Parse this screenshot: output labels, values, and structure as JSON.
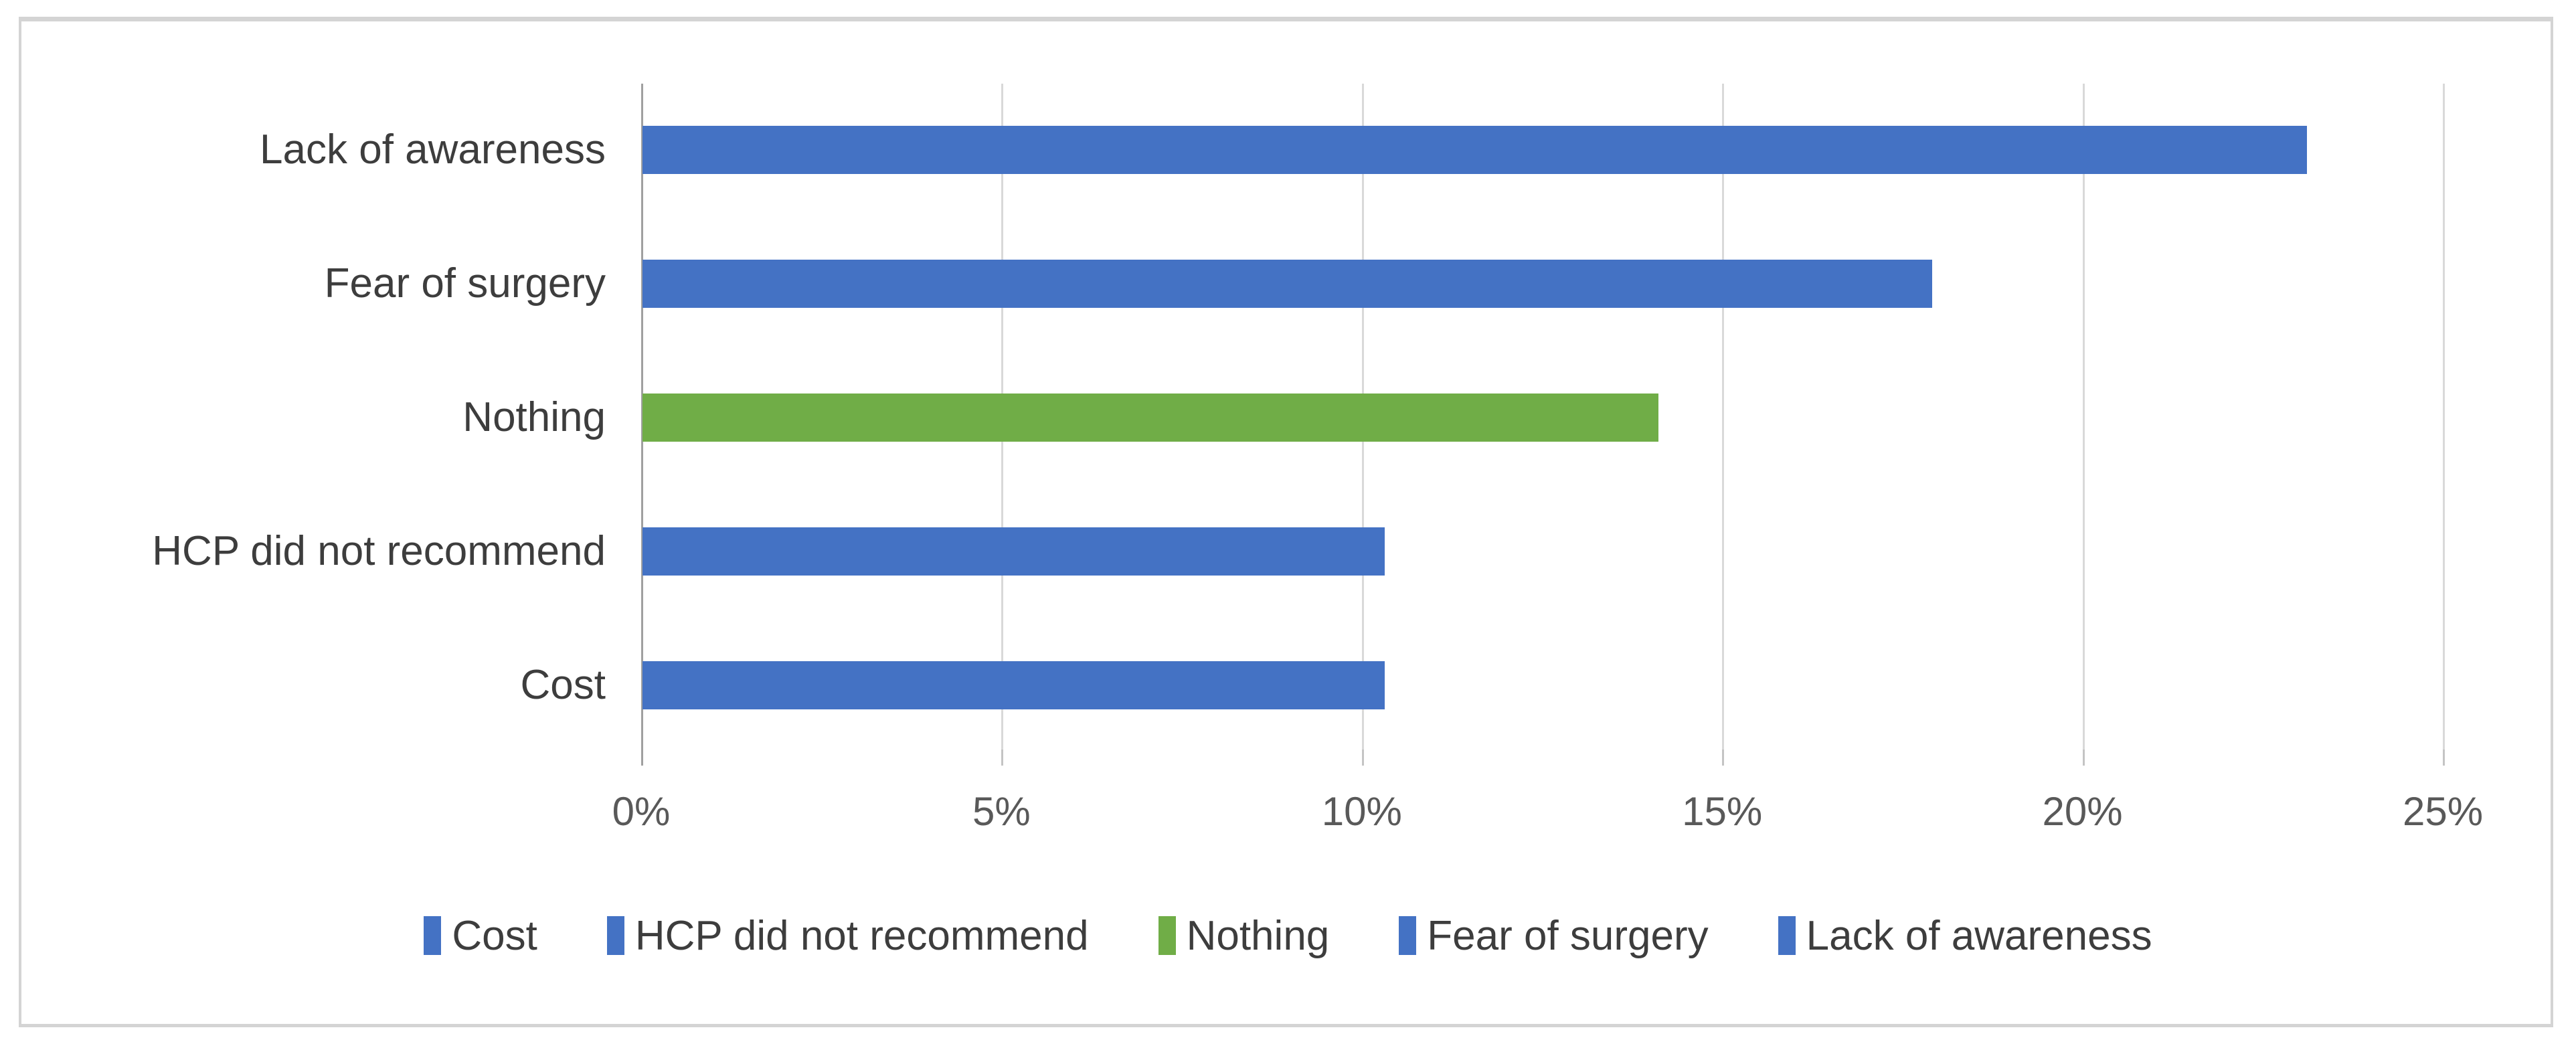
{
  "figure": {
    "border_color": "#d4d4d4",
    "background": "#ffffff"
  },
  "chart_data": {
    "type": "bar",
    "orientation": "horizontal",
    "title": "",
    "xlabel": "",
    "ylabel": "",
    "categories": [
      "Lack of awareness",
      "Fear of surgery",
      "Nothing",
      "HCP did not recommend",
      "Cost"
    ],
    "values": [
      23.1,
      17.9,
      14.1,
      10.3,
      10.3
    ],
    "unit": "%",
    "bar_colors": [
      "#4472C4",
      "#4472C4",
      "#70AD47",
      "#4472C4",
      "#4472C4"
    ],
    "xlim": [
      0,
      25
    ],
    "x_tick_values": [
      0,
      5,
      10,
      15,
      20,
      25
    ],
    "x_tick_labels": [
      "0%",
      "5%",
      "10%",
      "15%",
      "20%",
      "25%"
    ],
    "grid": true,
    "gridline_color": "#d9d9d9",
    "axis_line_color": "#a0a0a0",
    "tick_color": "#c4c4c4",
    "tick_label_color": "#595959",
    "category_label_color": "#3d3d3d",
    "legend_position": "bottom",
    "legend": [
      {
        "label": "Cost",
        "color": "#4472C4"
      },
      {
        "label": "HCP did not recommend",
        "color": "#4472C4"
      },
      {
        "label": "Nothing",
        "color": "#70AD47"
      },
      {
        "label": "Fear of surgery",
        "color": "#4472C4"
      },
      {
        "label": "Lack of awareness",
        "color": "#4472C4"
      }
    ]
  }
}
